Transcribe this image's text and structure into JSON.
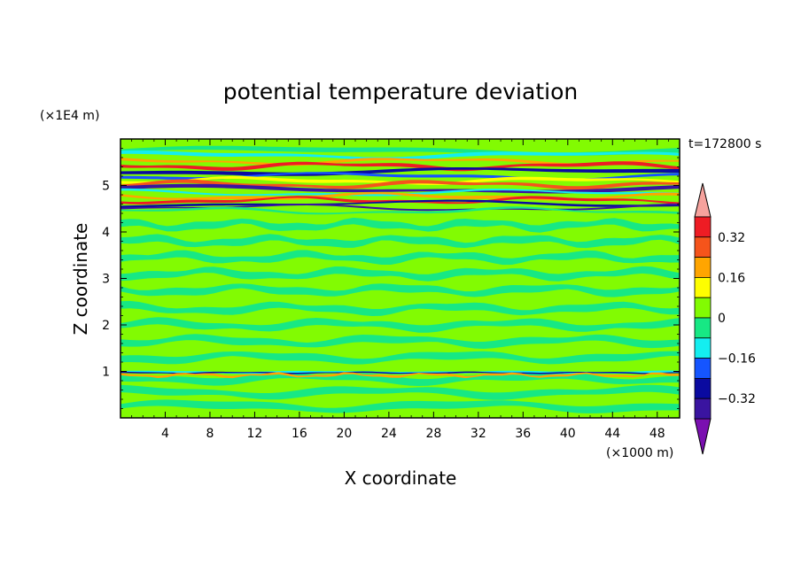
{
  "chart_data": {
    "type": "heatmap",
    "title": "potential temperature deviation",
    "xlabel": "X coordinate",
    "ylabel": "Z coordinate",
    "x_unit": "(×1000 m)",
    "y_unit": "(×1E4 m)",
    "time_label": "t=172800 s",
    "xlim": [
      0,
      50
    ],
    "ylim": [
      0,
      6
    ],
    "x_ticks": [
      "4",
      "8",
      "12",
      "16",
      "20",
      "24",
      "28",
      "32",
      "36",
      "40",
      "44",
      "48"
    ],
    "y_ticks": [
      "1",
      "2",
      "3",
      "4",
      "5"
    ],
    "colorbar": {
      "levels": [
        -0.4,
        -0.32,
        -0.24,
        -0.16,
        -0.08,
        0,
        0.08,
        0.16,
        0.24,
        0.32,
        0.4
      ],
      "labels": [
        "0.32",
        "0.16",
        "0",
        "−0.16",
        "−0.32"
      ],
      "colors": [
        "#7a0fb0",
        "#3a14a0",
        "#0a0aa0",
        "#1555ff",
        "#14eef0",
        "#17e884",
        "#82fb02",
        "#fefe00",
        "#ffa500",
        "#f5541b",
        "#ee1c24",
        "#f6a29d"
      ],
      "extend": "both"
    }
  }
}
